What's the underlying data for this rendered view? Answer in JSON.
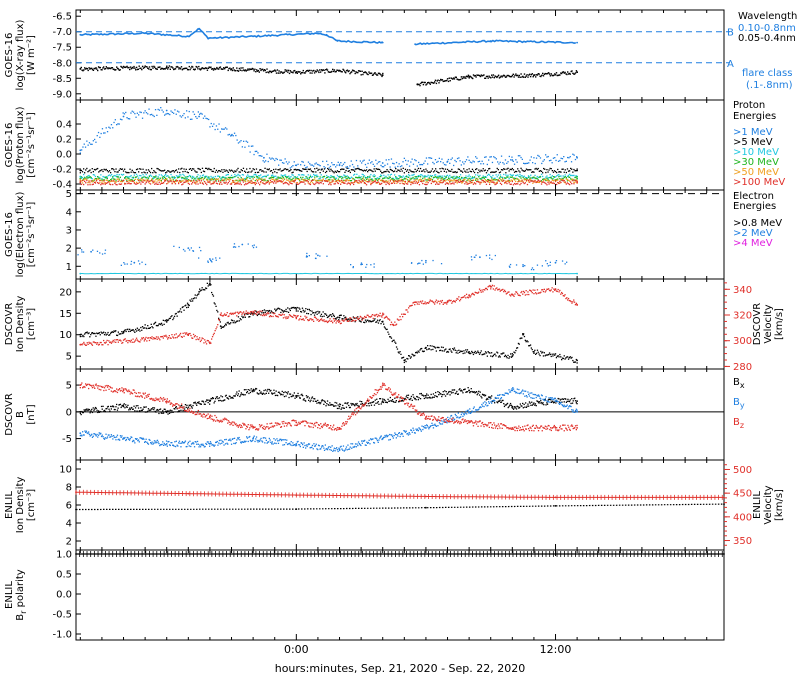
{
  "colors": {
    "black": "#000000",
    "blue": "#1f7fe0",
    "cyan": "#20c8e0",
    "green": "#1fb51f",
    "orange": "#f0a020",
    "red": "#e0302a",
    "magenta": "#e020e0"
  },
  "xaxis": {
    "label": "hours:minutes, Sep. 21, 2020 - Sep. 22, 2020",
    "ticks": [
      "0:00",
      "12:00"
    ],
    "range_hours": [
      -10.2,
      19.8
    ]
  },
  "chart_data": [
    {
      "panel": "xray",
      "type": "line",
      "ylabel": [
        "GOES-16",
        "log(X-ray flux)",
        "[W m⁻²]"
      ],
      "yticks": [
        "-6.5",
        "-7.0",
        "-7.5",
        "-8.0",
        "-8.5",
        "-9.0"
      ],
      "ylim": [
        -9.2,
        -6.3
      ],
      "legend_title": "Wavelength",
      "legend": [
        {
          "name": "0.10-0.8nm",
          "color": "#1f7fe0"
        },
        {
          "name": "0.05-0.4nm",
          "color": "#000000"
        }
      ],
      "threshold_labels": [
        {
          "label": "B",
          "value": -7.0
        },
        {
          "label": "A",
          "value": -8.0
        }
      ],
      "right_note": [
        "flare class",
        "(.1-.8nm)"
      ],
      "series": [
        {
          "name": "0.10-0.8nm",
          "x": [
            -10.0,
            -7.0,
            -5.0,
            -4.5,
            -4.1,
            -3.8,
            -2.0,
            1.0,
            1.4,
            1.9,
            4.0
          ],
          "y": [
            -7.1,
            -7.05,
            -7.15,
            -6.9,
            -7.2,
            -7.2,
            -7.15,
            -7.05,
            -7.1,
            -7.3,
            -7.35
          ]
        },
        {
          "name": "0.10-0.8nm",
          "x": [
            5.5,
            9.0,
            13.0
          ],
          "y": [
            -7.4,
            -7.3,
            -7.35
          ]
        },
        {
          "name": "0.05-0.4nm",
          "x": [
            -10.0,
            -6.0,
            -3.0,
            0.0,
            2.0,
            4.0
          ],
          "y": [
            -8.2,
            -8.15,
            -8.2,
            -8.3,
            -8.25,
            -8.4
          ]
        },
        {
          "name": "0.05-0.4nm",
          "x": [
            5.6,
            8.0,
            11.0,
            13.0
          ],
          "y": [
            -8.7,
            -8.45,
            -8.4,
            -8.3
          ]
        }
      ]
    },
    {
      "panel": "proton",
      "type": "scatter",
      "ylabel": [
        "GOES-16",
        "log(Proton flux)",
        "[cm⁻²s⁻¹sr⁻¹]"
      ],
      "yticks": [
        "0.4",
        "0.2",
        "0.0",
        "-0.2",
        "-0.4"
      ],
      "ylim": [
        -0.48,
        0.72
      ],
      "legend_title": [
        "Proton",
        "Energies"
      ],
      "legend": [
        {
          "name": ">1 MeV",
          "color": "#1f7fe0"
        },
        {
          "name": ">5 MeV",
          "color": "#000000"
        },
        {
          "name": ">10 MeV",
          "color": "#20c8e0"
        },
        {
          "name": ">30 MeV",
          "color": "#1fb51f"
        },
        {
          "name": ">50 MeV",
          "color": "#f0a020"
        },
        {
          "name": ">100 MeV",
          "color": "#e0302a"
        }
      ],
      "series": [
        {
          "name": ">1 MeV",
          "x": [
            -10.0,
            -8.0,
            -6.0,
            -4.5,
            -3.0,
            -1.5,
            0.0,
            2.0,
            4.0,
            7.0,
            10.0,
            13.0
          ],
          "y": [
            0.05,
            0.5,
            0.58,
            0.5,
            0.25,
            -0.05,
            -0.15,
            -0.15,
            -0.12,
            -0.1,
            -0.08,
            -0.05
          ]
        },
        {
          "name": ">5 MeV",
          "x": [
            -10.0,
            13.0
          ],
          "y": [
            -0.22,
            -0.22
          ]
        },
        {
          "name": ">10 MeV",
          "x": [
            -10.0,
            13.0
          ],
          "y": [
            -0.3,
            -0.3
          ]
        },
        {
          "name": ">30 MeV",
          "x": [
            -10.0,
            13.0
          ],
          "y": [
            -0.33,
            -0.33
          ]
        },
        {
          "name": ">50 MeV",
          "x": [
            -10.0,
            13.0
          ],
          "y": [
            -0.36,
            -0.36
          ]
        },
        {
          "name": ">100 MeV",
          "x": [
            -10.0,
            13.0
          ],
          "y": [
            -0.38,
            -0.38
          ]
        }
      ]
    },
    {
      "panel": "electron",
      "type": "scatter",
      "ylabel": [
        "GOES-16",
        "log(Electron flux)",
        "[cm⁻²s⁻¹sr⁻¹]"
      ],
      "yticks": [
        "5",
        "4",
        "3",
        "2",
        "1"
      ],
      "ylim": [
        0.3,
        5.2
      ],
      "dashed_level": 5.0,
      "legend_title": [
        "Electron",
        "Energies"
      ],
      "legend": [
        {
          "name": ">0.8 MeV",
          "color": "#000000"
        },
        {
          "name": ">2 MeV",
          "color": "#1f7fe0"
        },
        {
          "name": ">4 MeV",
          "color": "#e020e0"
        }
      ],
      "series": [
        {
          "name": ">2 MeV",
          "x": [
            -10.0,
            13.0
          ],
          "y": [
            0.6,
            0.6
          ]
        },
        {
          "name": ">2 MeV (scatter)",
          "x": [
            -9.5,
            -7.5,
            -5.0,
            -4.0,
            -2.5,
            1.0,
            3.0,
            6.0,
            8.5,
            10.5,
            12.0
          ],
          "y": [
            1.8,
            1.2,
            2.0,
            1.4,
            2.2,
            1.6,
            1.1,
            1.3,
            1.5,
            1.0,
            1.2
          ]
        }
      ]
    },
    {
      "panel": "dscovr_plasma",
      "type": "scatter",
      "ylabel_left": [
        "DSCOVR",
        "Ion Density",
        "[cm⁻³]"
      ],
      "ylabel_right": [
        "DSCOVR",
        "Velocity",
        "[km/s]"
      ],
      "yticks_left": [
        "20",
        "15",
        "10",
        "5"
      ],
      "ylim_left": [
        2,
        23
      ],
      "yticks_right": [
        "340",
        "320",
        "300",
        "280"
      ],
      "ylim_right": [
        278,
        348
      ],
      "series": [
        {
          "name": "Ion Density",
          "axis": "left",
          "color": "#000000",
          "x": [
            -10.0,
            -8.0,
            -6.0,
            -5.0,
            -4.5,
            -4.0,
            -3.5,
            -2.0,
            0.0,
            2.0,
            4.0,
            5.0,
            6.0,
            8.0,
            10.0,
            10.5,
            11.0,
            13.0
          ],
          "y": [
            10,
            10.5,
            13,
            17,
            20,
            22,
            12,
            15,
            16,
            14,
            13,
            4,
            7,
            6,
            5,
            10,
            6,
            4
          ]
        },
        {
          "name": "Velocity",
          "axis": "right",
          "color": "#e0302a",
          "x": [
            -10.0,
            -7.0,
            -5.0,
            -4.0,
            -3.5,
            -2.0,
            0.0,
            2.0,
            4.0,
            4.5,
            5.5,
            7.0,
            8.0,
            9.0,
            10.0,
            12.0,
            13.0
          ],
          "y": [
            297,
            301,
            305,
            298,
            320,
            322,
            318,
            315,
            320,
            312,
            330,
            330,
            335,
            342,
            336,
            340,
            328
          ]
        }
      ]
    },
    {
      "panel": "dscovr_b",
      "type": "scatter",
      "ylabel": [
        "DSCOVR",
        "B",
        "[nT]"
      ],
      "yticks": [
        "5",
        "0",
        "-5"
      ],
      "ylim": [
        -9,
        8
      ],
      "zero_line": true,
      "legend": [
        {
          "name": "Bx",
          "color": "#000000"
        },
        {
          "name": "By",
          "color": "#1f7fe0"
        },
        {
          "name": "Bz",
          "color": "#e0302a"
        }
      ],
      "series": [
        {
          "name": "Bx",
          "x": [
            -10.0,
            -8.0,
            -6.0,
            -4.0,
            -2.0,
            0.0,
            2.0,
            4.0,
            6.0,
            8.0,
            10.0,
            12.0,
            13.0
          ],
          "y": [
            0,
            1,
            0,
            2,
            4,
            3,
            1,
            2,
            3,
            4,
            1,
            2,
            2
          ]
        },
        {
          "name": "By",
          "x": [
            -10.0,
            -8.0,
            -6.0,
            -4.0,
            -2.0,
            0.0,
            2.0,
            4.0,
            6.0,
            8.0,
            10.0,
            12.0,
            13.0
          ],
          "y": [
            -4,
            -5,
            -6,
            -6,
            -5,
            -6,
            -7,
            -5,
            -3,
            0,
            4,
            2,
            0
          ]
        },
        {
          "name": "Bz",
          "x": [
            -10.0,
            -8.0,
            -6.0,
            -4.0,
            -2.0,
            0.0,
            2.0,
            4.0,
            6.0,
            8.0,
            10.0,
            12.0,
            13.0
          ],
          "y": [
            5,
            4,
            2,
            -1,
            -3,
            -2,
            -3,
            5,
            -1,
            -2,
            -3,
            -3,
            -3
          ]
        }
      ]
    },
    {
      "panel": "enlil_plasma",
      "type": "line",
      "ylabel_left": [
        "ENLIL",
        "Ion Density",
        "[cm⁻³]"
      ],
      "ylabel_right": [
        "ENLIL",
        "Velocity",
        "[km/s]"
      ],
      "yticks_left": [
        "10",
        "8",
        "6",
        "4",
        "2"
      ],
      "ylim_left": [
        1,
        11
      ],
      "yticks_right": [
        "500",
        "450",
        "400",
        "350"
      ],
      "ylim_right": [
        330,
        520
      ],
      "series": [
        {
          "name": "Ion Density",
          "axis": "left",
          "color": "#000000",
          "x": [
            -10.2,
            0.0,
            6.0,
            12.0,
            19.8
          ],
          "y": [
            5.5,
            5.55,
            5.7,
            5.9,
            6.1
          ]
        },
        {
          "name": "Velocity",
          "axis": "right",
          "color": "#e0302a",
          "x": [
            -10.2,
            -5.0,
            0.0,
            6.0,
            12.0,
            19.8
          ],
          "y": [
            452,
            449,
            446,
            443,
            441,
            441
          ]
        }
      ]
    },
    {
      "panel": "enlil_polarity",
      "type": "line",
      "ylabel": [
        "ENLIL",
        "Br polarity"
      ],
      "yticks": [
        "1.0",
        "0.5",
        "0.0",
        "-0.5",
        "-1.0"
      ],
      "ylim": [
        -1.15,
        1.1
      ],
      "series": [
        {
          "name": "Br polarity",
          "color": "#000000",
          "x": [
            -10.2,
            19.8
          ],
          "y": [
            1.0,
            1.0
          ]
        }
      ]
    }
  ]
}
